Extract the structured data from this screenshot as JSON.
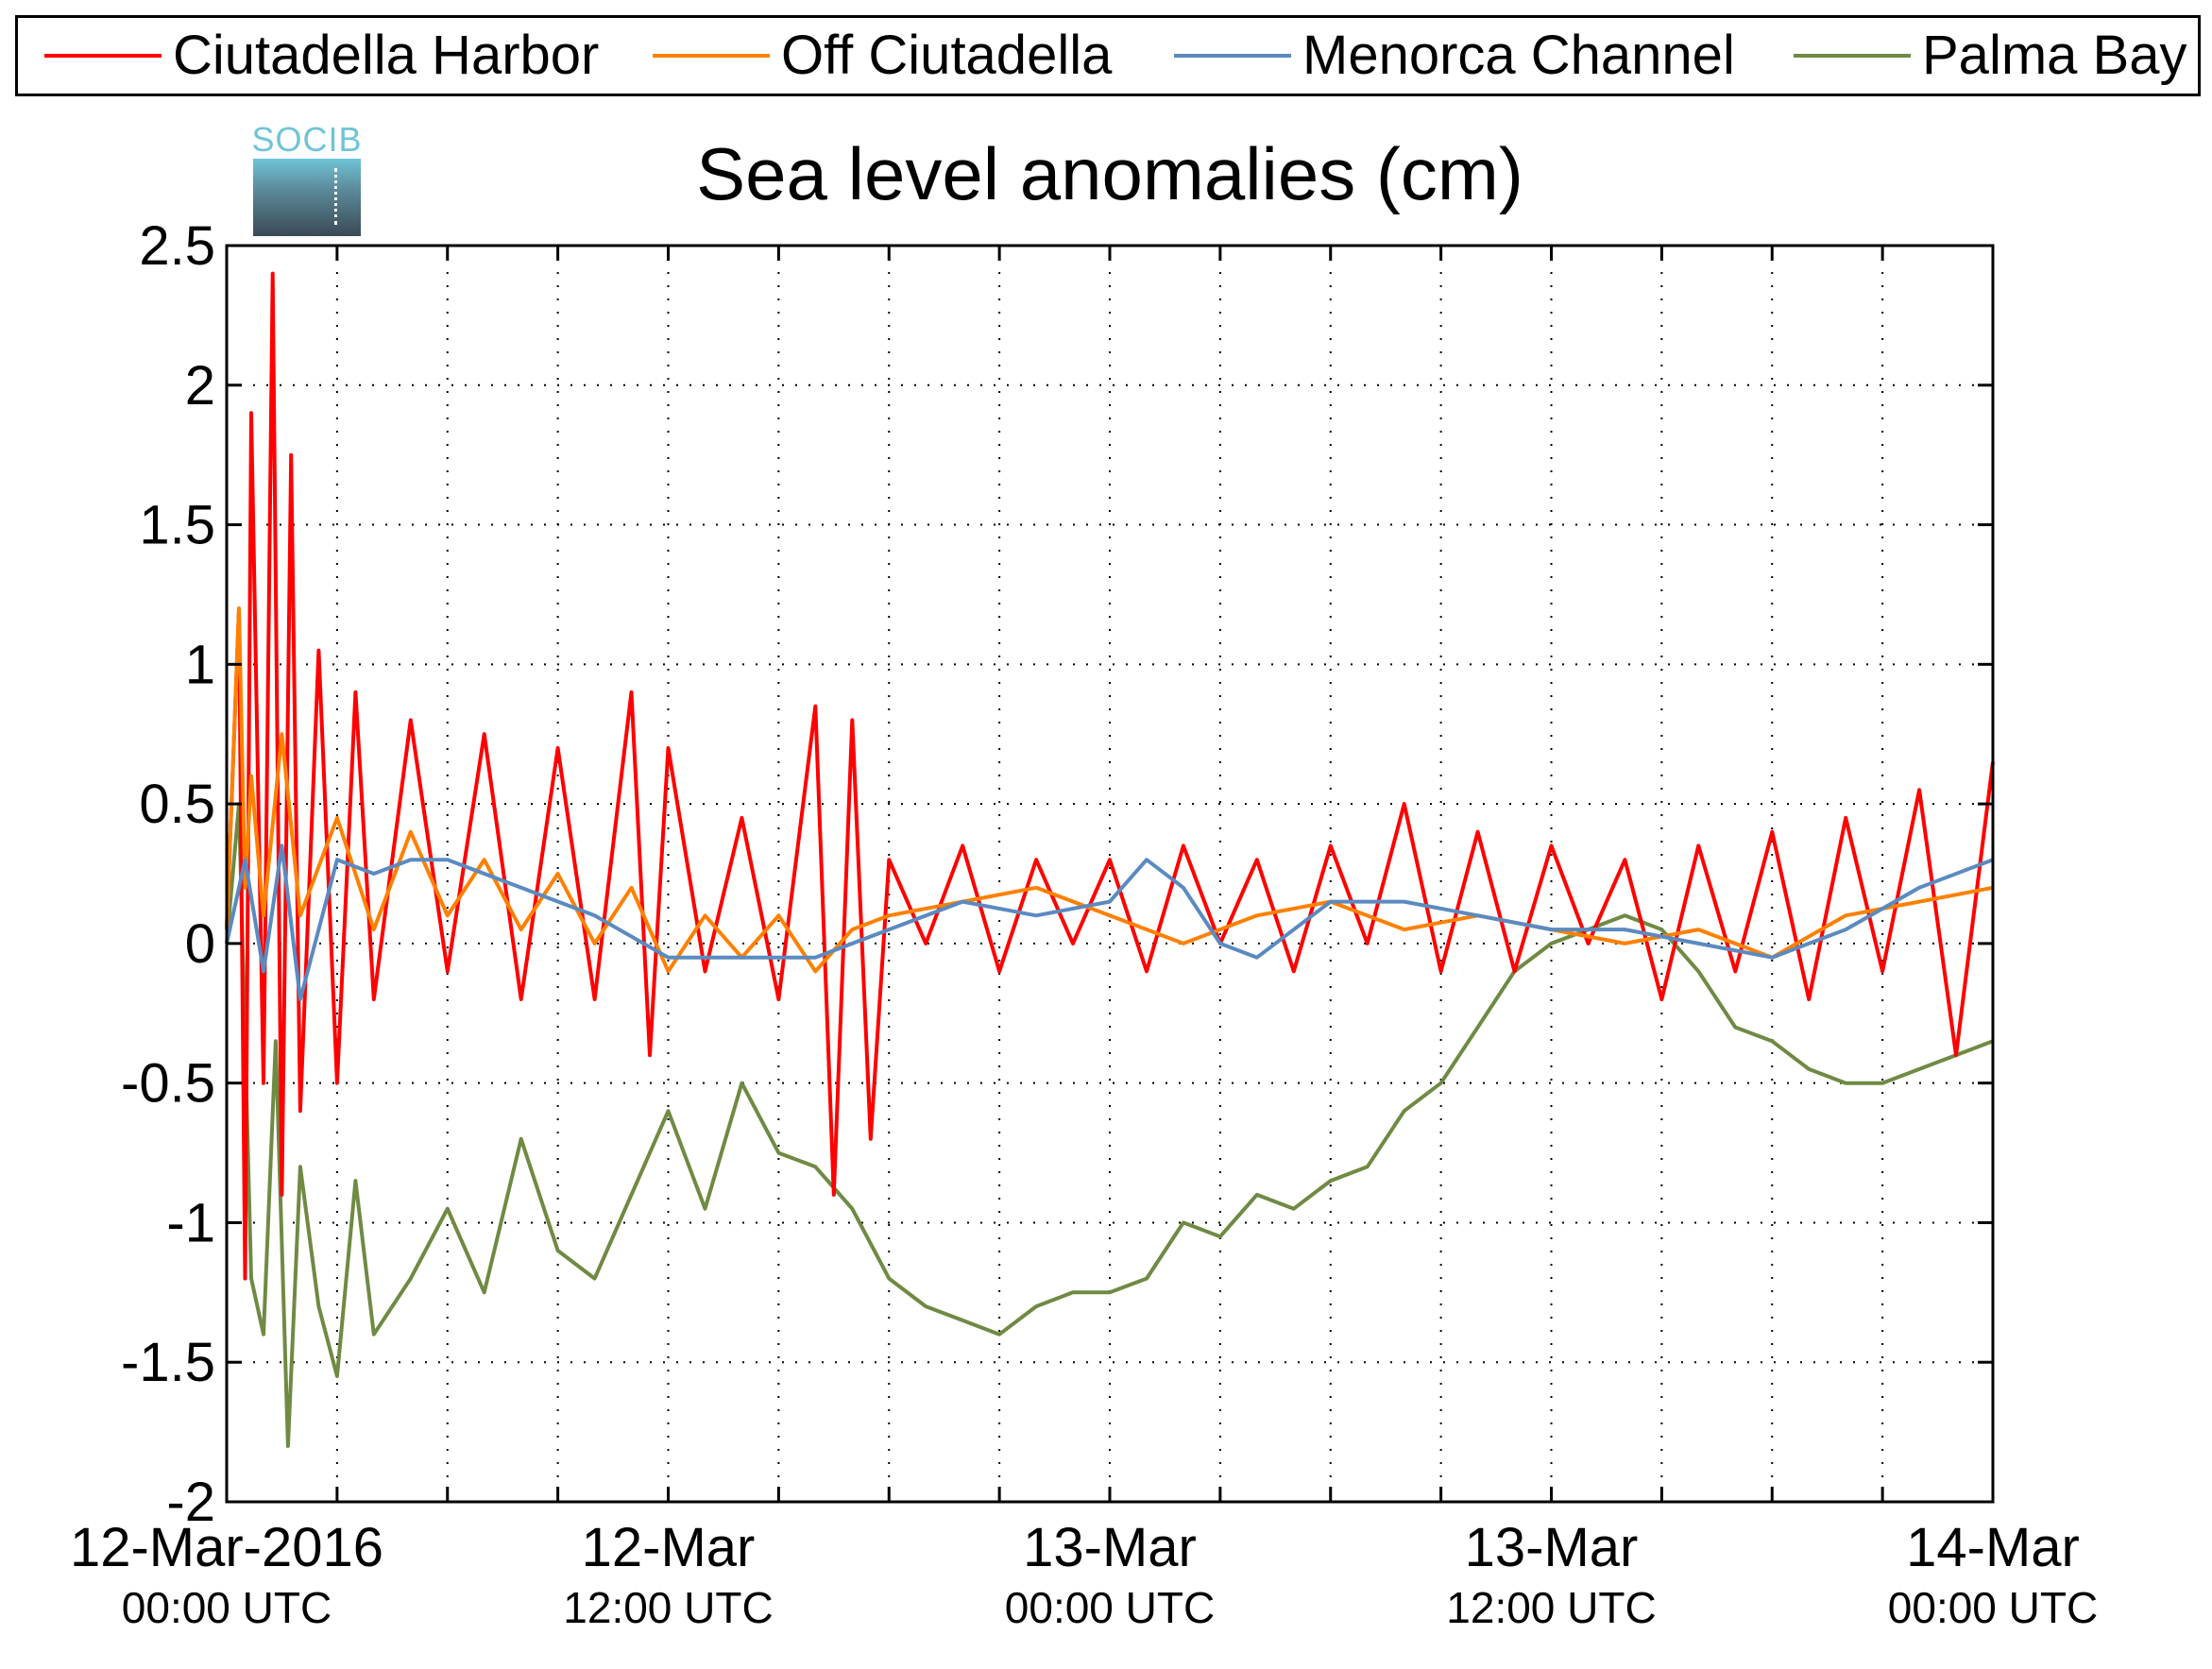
{
  "legend": {
    "items": [
      {
        "label": "Ciutadella Harbor",
        "color": "#ff0000"
      },
      {
        "label": "Off Ciutadella",
        "color": "#ff8000"
      },
      {
        "label": "Menorca Channel",
        "color": "#5b8ac0"
      },
      {
        "label": "Palma Bay",
        "color": "#6f8a43"
      }
    ]
  },
  "logo": {
    "text": "SOCIB"
  },
  "chart_data": {
    "type": "line",
    "title": "Sea level anomalies (cm)",
    "xlabel": "",
    "ylabel": "",
    "ylim": [
      -2,
      2.5
    ],
    "yticks": [
      "2.5",
      "2",
      "1.5",
      "1",
      "0.5",
      "0",
      "-0.5",
      "-1",
      "-1.5",
      "-2"
    ],
    "xlim_hours": [
      0,
      48
    ],
    "xticks": [
      {
        "line1": "12-Mar-2016",
        "line2": "00:00 UTC"
      },
      {
        "line1": "12-Mar",
        "line2": "12:00 UTC"
      },
      {
        "line1": "13-Mar",
        "line2": "00:00 UTC"
      },
      {
        "line1": "13-Mar",
        "line2": "12:00 UTC"
      },
      {
        "line1": "14-Mar",
        "line2": "00:00 UTC"
      }
    ],
    "grid": true,
    "legend_position": "top",
    "series": [
      {
        "name": "Ciutadella Harbor",
        "color": "#ff0000",
        "x": [
          "12-Mar-2016 00:00",
          "12-Mar-2016 00:20",
          "12-Mar-2016 00:30",
          "12-Mar-2016 00:40",
          "12-Mar-2016 01:00",
          "12-Mar-2016 01:15",
          "12-Mar-2016 01:30",
          "12-Mar-2016 01:45",
          "12-Mar-2016 02:00",
          "12-Mar-2016 02:30",
          "12-Mar-2016 03:00",
          "12-Mar-2016 03:30",
          "12-Mar-2016 04:00",
          "12-Mar-2016 05:00",
          "12-Mar-2016 06:00",
          "12-Mar-2016 07:00",
          "12-Mar-2016 08:00",
          "12-Mar-2016 09:00",
          "12-Mar-2016 10:00",
          "12-Mar-2016 11:00",
          "12-Mar-2016 11:30",
          "12-Mar-2016 12:00",
          "12-Mar-2016 13:00",
          "12-Mar-2016 14:00",
          "12-Mar-2016 15:00",
          "12-Mar-2016 16:00",
          "12-Mar-2016 16:30",
          "12-Mar-2016 17:00",
          "12-Mar-2016 17:30",
          "12-Mar-2016 18:00",
          "12-Mar-2016 19:00",
          "12-Mar-2016 20:00",
          "12-Mar-2016 21:00",
          "12-Mar-2016 22:00",
          "12-Mar-2016 23:00",
          "13-Mar-2016 00:00",
          "13-Mar-2016 01:00",
          "13-Mar-2016 02:00",
          "13-Mar-2016 03:00",
          "13-Mar-2016 04:00",
          "13-Mar-2016 05:00",
          "13-Mar-2016 06:00",
          "13-Mar-2016 07:00",
          "13-Mar-2016 08:00",
          "13-Mar-2016 09:00",
          "13-Mar-2016 10:00",
          "13-Mar-2016 11:00",
          "13-Mar-2016 12:00",
          "13-Mar-2016 13:00",
          "13-Mar-2016 14:00",
          "13-Mar-2016 15:00",
          "13-Mar-2016 16:00",
          "13-Mar-2016 17:00",
          "13-Mar-2016 18:00",
          "13-Mar-2016 19:00",
          "13-Mar-2016 20:00",
          "13-Mar-2016 21:00",
          "13-Mar-2016 22:00",
          "13-Mar-2016 23:00",
          "14-Mar-2016 00:00"
        ],
        "values": [
          0.05,
          1.2,
          -1.2,
          1.9,
          -0.5,
          2.4,
          -0.9,
          1.75,
          -0.6,
          1.05,
          -0.5,
          0.9,
          -0.2,
          0.8,
          -0.1,
          0.75,
          -0.2,
          0.7,
          -0.2,
          0.9,
          -0.4,
          0.7,
          -0.1,
          0.45,
          -0.2,
          0.85,
          -0.9,
          0.8,
          -0.7,
          0.3,
          0.0,
          0.35,
          -0.1,
          0.3,
          0.0,
          0.3,
          -0.1,
          0.35,
          0.0,
          0.3,
          -0.1,
          0.35,
          0.0,
          0.5,
          -0.1,
          0.4,
          -0.1,
          0.35,
          0.0,
          0.3,
          -0.2,
          0.35,
          -0.1,
          0.4,
          -0.2,
          0.45,
          -0.1,
          0.55,
          -0.4,
          0.65
        ]
      },
      {
        "name": "Off Ciutadella",
        "color": "#ff8000",
        "x": [
          "12-Mar-2016 00:00",
          "12-Mar-2016 00:20",
          "12-Mar-2016 00:30",
          "12-Mar-2016 00:40",
          "12-Mar-2016 01:00",
          "12-Mar-2016 01:30",
          "12-Mar-2016 02:00",
          "12-Mar-2016 03:00",
          "12-Mar-2016 04:00",
          "12-Mar-2016 05:00",
          "12-Mar-2016 06:00",
          "12-Mar-2016 07:00",
          "12-Mar-2016 08:00",
          "12-Mar-2016 09:00",
          "12-Mar-2016 10:00",
          "12-Mar-2016 11:00",
          "12-Mar-2016 12:00",
          "12-Mar-2016 13:00",
          "12-Mar-2016 14:00",
          "12-Mar-2016 15:00",
          "12-Mar-2016 16:00",
          "12-Mar-2016 17:00",
          "12-Mar-2016 18:00",
          "12-Mar-2016 20:00",
          "12-Mar-2016 22:00",
          "13-Mar-2016 00:00",
          "13-Mar-2016 02:00",
          "13-Mar-2016 04:00",
          "13-Mar-2016 06:00",
          "13-Mar-2016 08:00",
          "13-Mar-2016 10:00",
          "13-Mar-2016 12:00",
          "13-Mar-2016 14:00",
          "13-Mar-2016 16:00",
          "13-Mar-2016 18:00",
          "13-Mar-2016 20:00",
          "13-Mar-2016 22:00",
          "14-Mar-2016 00:00"
        ],
        "values": [
          0.05,
          1.2,
          0.2,
          0.6,
          0.1,
          0.75,
          0.1,
          0.45,
          0.05,
          0.4,
          0.1,
          0.3,
          0.05,
          0.25,
          0.0,
          0.2,
          -0.1,
          0.1,
          -0.05,
          0.1,
          -0.1,
          0.05,
          0.1,
          0.15,
          0.2,
          0.1,
          0.0,
          0.1,
          0.15,
          0.05,
          0.1,
          0.05,
          0.0,
          0.05,
          -0.05,
          0.1,
          0.15,
          0.2
        ]
      },
      {
        "name": "Menorca Channel",
        "color": "#5b8ac0",
        "x": [
          "12-Mar-2016 00:00",
          "12-Mar-2016 00:30",
          "12-Mar-2016 01:00",
          "12-Mar-2016 01:30",
          "12-Mar-2016 02:00",
          "12-Mar-2016 03:00",
          "12-Mar-2016 04:00",
          "12-Mar-2016 05:00",
          "12-Mar-2016 06:00",
          "12-Mar-2016 08:00",
          "12-Mar-2016 10:00",
          "12-Mar-2016 12:00",
          "12-Mar-2016 14:00",
          "12-Mar-2016 16:00",
          "12-Mar-2016 18:00",
          "12-Mar-2016 20:00",
          "12-Mar-2016 22:00",
          "13-Mar-2016 00:00",
          "13-Mar-2016 01:00",
          "13-Mar-2016 02:00",
          "13-Mar-2016 03:00",
          "13-Mar-2016 04:00",
          "13-Mar-2016 06:00",
          "13-Mar-2016 08:00",
          "13-Mar-2016 10:00",
          "13-Mar-2016 12:00",
          "13-Mar-2016 14:00",
          "13-Mar-2016 16:00",
          "13-Mar-2016 18:00",
          "13-Mar-2016 20:00",
          "13-Mar-2016 22:00",
          "14-Mar-2016 00:00"
        ],
        "values": [
          0.0,
          0.3,
          -0.1,
          0.35,
          -0.2,
          0.3,
          0.25,
          0.3,
          0.3,
          0.2,
          0.1,
          -0.05,
          -0.05,
          -0.05,
          0.05,
          0.15,
          0.1,
          0.15,
          0.3,
          0.2,
          0.0,
          -0.05,
          0.15,
          0.15,
          0.1,
          0.05,
          0.05,
          0.0,
          -0.05,
          0.05,
          0.2,
          0.3
        ]
      },
      {
        "name": "Palma Bay",
        "color": "#6f8a43",
        "x": [
          "12-Mar-2016 00:00",
          "12-Mar-2016 00:20",
          "12-Mar-2016 00:40",
          "12-Mar-2016 01:00",
          "12-Mar-2016 01:20",
          "12-Mar-2016 01:40",
          "12-Mar-2016 02:00",
          "12-Mar-2016 02:30",
          "12-Mar-2016 03:00",
          "12-Mar-2016 03:30",
          "12-Mar-2016 04:00",
          "12-Mar-2016 05:00",
          "12-Mar-2016 06:00",
          "12-Mar-2016 07:00",
          "12-Mar-2016 08:00",
          "12-Mar-2016 09:00",
          "12-Mar-2016 10:00",
          "12-Mar-2016 11:00",
          "12-Mar-2016 12:00",
          "12-Mar-2016 13:00",
          "12-Mar-2016 14:00",
          "12-Mar-2016 15:00",
          "12-Mar-2016 16:00",
          "12-Mar-2016 17:00",
          "12-Mar-2016 18:00",
          "12-Mar-2016 19:00",
          "12-Mar-2016 20:00",
          "12-Mar-2016 21:00",
          "12-Mar-2016 22:00",
          "12-Mar-2016 23:00",
          "13-Mar-2016 00:00",
          "13-Mar-2016 01:00",
          "13-Mar-2016 02:00",
          "13-Mar-2016 03:00",
          "13-Mar-2016 04:00",
          "13-Mar-2016 05:00",
          "13-Mar-2016 06:00",
          "13-Mar-2016 07:00",
          "13-Mar-2016 08:00",
          "13-Mar-2016 09:00",
          "13-Mar-2016 10:00",
          "13-Mar-2016 11:00",
          "13-Mar-2016 12:00",
          "13-Mar-2016 13:00",
          "13-Mar-2016 14:00",
          "13-Mar-2016 15:00",
          "13-Mar-2016 16:00",
          "13-Mar-2016 17:00",
          "13-Mar-2016 18:00",
          "13-Mar-2016 19:00",
          "13-Mar-2016 20:00",
          "13-Mar-2016 21:00",
          "13-Mar-2016 22:00",
          "13-Mar-2016 23:00",
          "14-Mar-2016 00:00"
        ],
        "values": [
          0.0,
          0.5,
          -1.2,
          -1.4,
          -0.35,
          -1.8,
          -0.8,
          -1.3,
          -1.55,
          -0.85,
          -1.4,
          -1.2,
          -0.95,
          -1.25,
          -0.7,
          -1.1,
          -1.2,
          -0.9,
          -0.6,
          -0.95,
          -0.5,
          -0.75,
          -0.8,
          -0.95,
          -1.2,
          -1.3,
          -1.35,
          -1.4,
          -1.3,
          -1.25,
          -1.25,
          -1.2,
          -1.0,
          -1.05,
          -0.9,
          -0.95,
          -0.85,
          -0.8,
          -0.6,
          -0.5,
          -0.3,
          -0.1,
          0.0,
          0.05,
          0.1,
          0.05,
          -0.1,
          -0.3,
          -0.35,
          -0.45,
          -0.5,
          -0.5,
          -0.45,
          -0.4,
          -0.35
        ]
      }
    ]
  }
}
